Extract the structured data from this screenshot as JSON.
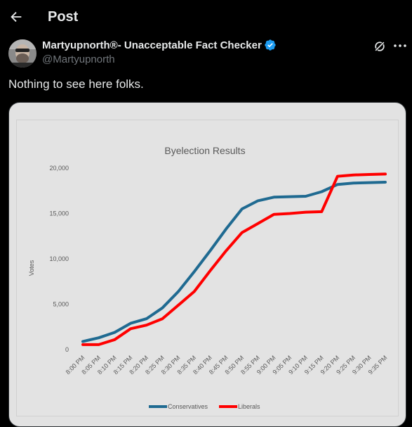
{
  "header": {
    "title": "Post"
  },
  "author": {
    "display_name": "Martyupnorth®- Unacceptable Fact Checker",
    "handle": "@Martyupnorth",
    "verified": true
  },
  "post": {
    "text": "Nothing to see here folks."
  },
  "colors": {
    "background": "#000000",
    "text": "#e7e9ea",
    "muted": "#71767b",
    "verified": "#1d9bf0",
    "conservatives": "#1f6a91",
    "liberals": "#ff0000"
  },
  "icons": {
    "back": "arrow-left-icon",
    "verified": "verified-badge-icon",
    "grok": "grok-icon",
    "more": "more-icon"
  },
  "chart_data": {
    "type": "line",
    "title": "Byelection Results",
    "xlabel": "",
    "ylabel": "Votes",
    "ylim": [
      0,
      20000
    ],
    "yticks": [
      "0",
      "5,000",
      "10,000",
      "15,000",
      "20,000"
    ],
    "x": [
      "8:00 PM",
      "8:05 PM",
      "8:10 PM",
      "8:15 PM",
      "8:20 PM",
      "8:25 PM",
      "8:30 PM",
      "8:35 PM",
      "8:40 PM",
      "8:45 PM",
      "8:50 PM",
      "8:55 PM",
      "9:00 PM",
      "9:05 PM",
      "9:10 PM",
      "9:15 PM",
      "9:20 PM",
      "9:25 PM",
      "9:30 PM",
      "9:35 PM"
    ],
    "series": [
      {
        "name": "Conservatives",
        "color": "#1f6a91",
        "values": [
          900,
          1300,
          1900,
          2900,
          3400,
          4600,
          6400,
          8600,
          10900,
          13300,
          15500,
          16400,
          16800,
          16850,
          16900,
          17400,
          18200,
          18350,
          18400,
          18450
        ]
      },
      {
        "name": "Liberals",
        "color": "#ff0000",
        "values": [
          550,
          550,
          1100,
          2300,
          2700,
          3400,
          4900,
          6400,
          8700,
          10900,
          12900,
          13900,
          14900,
          15000,
          15150,
          15200,
          19100,
          19250,
          19300,
          19350
        ]
      }
    ],
    "grid": false,
    "legend": "bottom"
  }
}
